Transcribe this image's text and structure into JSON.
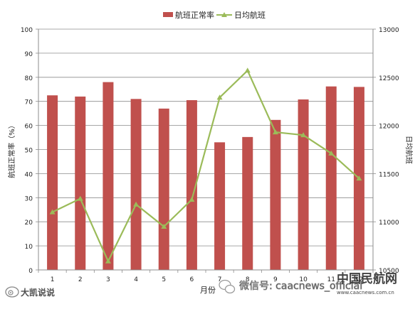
{
  "chart_data": {
    "type": "bar+line",
    "categories": [
      "1",
      "2",
      "3",
      "4",
      "5",
      "6",
      "7",
      "8",
      "9",
      "10",
      "11",
      "12"
    ],
    "series": [
      {
        "name": "航班正常率",
        "type": "bar",
        "axis": "left",
        "color": "#c0504d",
        "values": [
          72.5,
          72.0,
          78.0,
          71.0,
          67.0,
          70.5,
          53.0,
          55.2,
          62.3,
          70.8,
          76.2,
          76.0
        ]
      },
      {
        "name": "日均航班",
        "type": "line",
        "axis": "right",
        "color": "#9bbb59",
        "marker": "triangle",
        "values": [
          11100,
          11240,
          10590,
          11180,
          10950,
          11230,
          12290,
          12570,
          11930,
          11900,
          11710,
          11450
        ]
      }
    ],
    "xlabel": "月份",
    "ylabel_left": "航班正常率（%）",
    "ylabel_right": "日均航班",
    "ylim_left": [
      0,
      100
    ],
    "yticks_left": [
      0,
      10,
      20,
      30,
      40,
      50,
      60,
      70,
      80,
      90,
      100
    ],
    "ylim_right": [
      10500,
      13000
    ],
    "yticks_right": [
      10500,
      11000,
      11500,
      12000,
      12500,
      13000
    ],
    "grid": true,
    "legend_position": "top-center"
  },
  "watermarks": {
    "left": "大凯说说",
    "right_wechat": "微信号: caacnews_official",
    "right_logo": "中国民航网",
    "right_url": "www.caacnews.com.cn"
  }
}
